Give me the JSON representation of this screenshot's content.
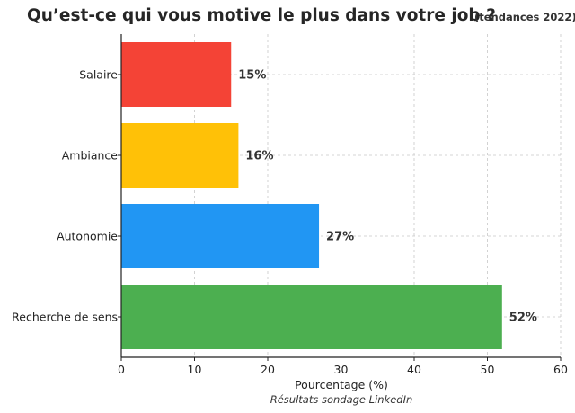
{
  "chart_data": {
    "type": "bar",
    "orientation": "horizontal",
    "title": "Qu’est-ce qui vous motive le plus dans votre job ?",
    "subtitle": "(tendances 2022)",
    "xlabel": "Pourcentage (%)",
    "caption": "Résultats sondage LinkedIn",
    "xlim": [
      0,
      60
    ],
    "xticks": [
      0,
      10,
      20,
      30,
      40,
      50,
      60
    ],
    "grid": true,
    "categories": [
      "Salaire",
      "Ambiance",
      "Autonomie",
      "Recherche de sens"
    ],
    "values": [
      15,
      16,
      27,
      52
    ],
    "value_labels": [
      "15%",
      "16%",
      "27%",
      "52%"
    ],
    "colors": [
      "#f44336",
      "#ffc107",
      "#2196f3",
      "#4caf50"
    ]
  }
}
